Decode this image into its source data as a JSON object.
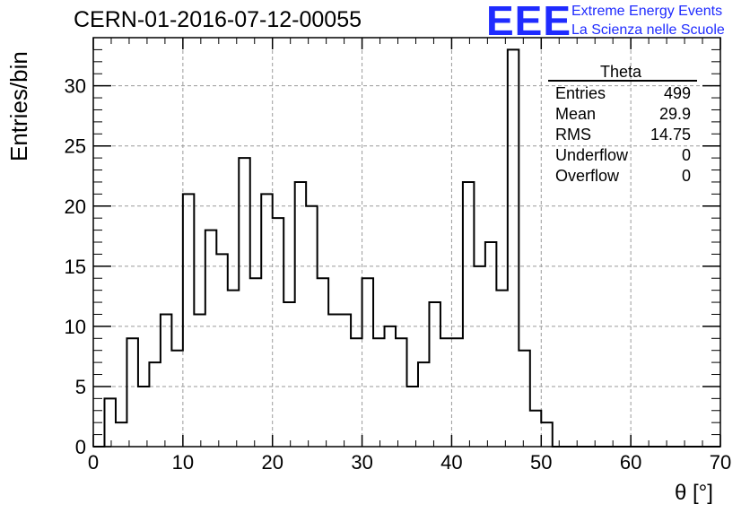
{
  "header": {
    "run_id": "CERN-01-2016-07-12-00055",
    "logo_mark": "EEE",
    "logo_line1": "Extreme Energy Events",
    "logo_line2": "La Scienza nelle Scuole"
  },
  "stats": {
    "title": "Theta",
    "rows": [
      {
        "label": "Entries",
        "value": "499"
      },
      {
        "label": "Mean",
        "value": "29.9"
      },
      {
        "label": "RMS",
        "value": "14.75"
      },
      {
        "label": "Underflow",
        "value": "0"
      },
      {
        "label": "Overflow",
        "value": "0"
      }
    ]
  },
  "colors": {
    "line": "#000000",
    "grid": "#9a9a9a",
    "logo": "#1f2bff"
  },
  "chart_data": {
    "type": "bar",
    "style": "step-histogram",
    "title": "",
    "xlabel": "θ [°]",
    "ylabel": "Entries/bin",
    "xlim": [
      0,
      70
    ],
    "ylim": [
      0,
      34
    ],
    "grid": true,
    "legend": "top-right",
    "xticks": [
      0,
      10,
      20,
      30,
      40,
      50,
      60,
      70
    ],
    "yticks": [
      0,
      5,
      10,
      15,
      20,
      25,
      30
    ],
    "bin_edges": [
      0,
      1.25,
      2.5,
      3.75,
      5,
      6.25,
      7.5,
      8.75,
      10,
      11.25,
      12.5,
      13.75,
      15,
      16.25,
      17.5,
      18.75,
      20,
      21.25,
      22.5,
      23.75,
      25,
      26.25,
      27.5,
      28.75,
      30,
      31.25,
      32.5,
      33.75,
      35,
      36.25,
      37.5,
      38.75,
      40,
      41.25,
      42.5,
      43.75,
      45,
      46.25,
      47.5,
      48.75,
      50,
      51.25,
      52.5,
      53.75,
      55,
      56.25,
      57.5,
      58.75,
      60,
      61.25,
      62.5,
      63.75,
      65,
      66.25,
      67.5,
      68.75,
      70
    ],
    "values": [
      0,
      4,
      2,
      9,
      5,
      7,
      11,
      8,
      21,
      11,
      18,
      16,
      13,
      24,
      14,
      21,
      19,
      12,
      22,
      20,
      14,
      11,
      11,
      9,
      14,
      9,
      10,
      9,
      5,
      7,
      12,
      9,
      9,
      22,
      15,
      17,
      13,
      33,
      8,
      3,
      2,
      0,
      0,
      0,
      0,
      0,
      0,
      0,
      0,
      0,
      0,
      0,
      0,
      0,
      0,
      0
    ]
  }
}
